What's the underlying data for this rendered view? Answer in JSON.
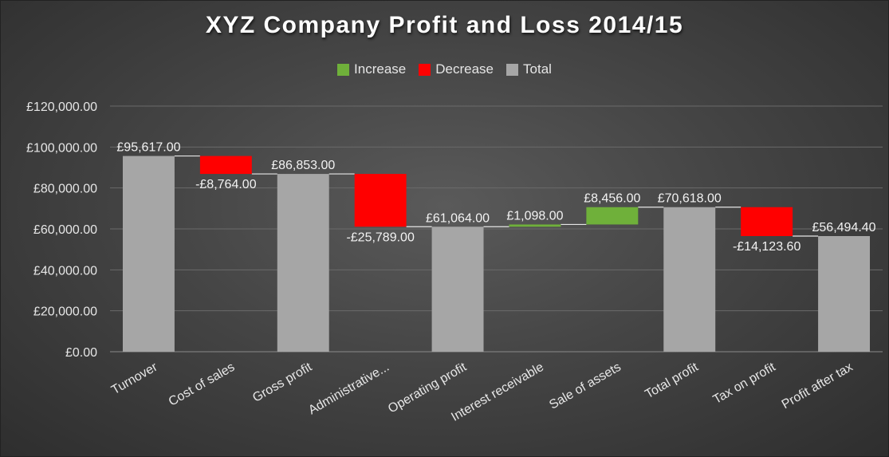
{
  "colors": {
    "increase": "#6fb03a",
    "decrease": "#ff0000",
    "total": "#a6a6a6",
    "gridline": "#6a6a6a",
    "connector": "#e6e6e6"
  },
  "legend": [
    {
      "label": "Increase",
      "color_key": "increase"
    },
    {
      "label": "Decrease",
      "color_key": "decrease"
    },
    {
      "label": "Total",
      "color_key": "total"
    }
  ],
  "chart_data": {
    "type": "waterfall",
    "title": "XYZ Company Profit and Loss 2014/15",
    "xlabel": "",
    "ylabel": "",
    "ylim": [
      0,
      120000
    ],
    "yticks": [
      0,
      20000,
      40000,
      60000,
      80000,
      100000,
      120000
    ],
    "ytick_labels": [
      "£0.00",
      "£20,000.00",
      "£40,000.00",
      "£60,000.00",
      "£80,000.00",
      "£100,000.00",
      "£120,000.00"
    ],
    "grid": true,
    "legend_position": "top",
    "categories": [
      "Turnover",
      "Cost of sales",
      "Gross profit",
      "Administrative...",
      "Operating profit",
      "Interest receivable",
      "Sale of assets",
      "Total profit",
      "Tax on profit",
      "Profit after tax"
    ],
    "values": [
      95617.0,
      -8764.0,
      86853.0,
      -25789.0,
      61064.0,
      1098.0,
      8456.0,
      70618.0,
      -14123.6,
      56494.4
    ],
    "kinds": [
      "total",
      "decrease",
      "total",
      "decrease",
      "total",
      "increase",
      "increase",
      "total",
      "decrease",
      "total"
    ],
    "data_labels": [
      "£95,617.00",
      "-£8,764.00",
      "£86,853.00",
      "-£25,789.00",
      "£61,064.00",
      "£1,098.00",
      "£8,456.00",
      "£70,618.00",
      "-£14,123.60",
      "£56,494.40"
    ]
  }
}
